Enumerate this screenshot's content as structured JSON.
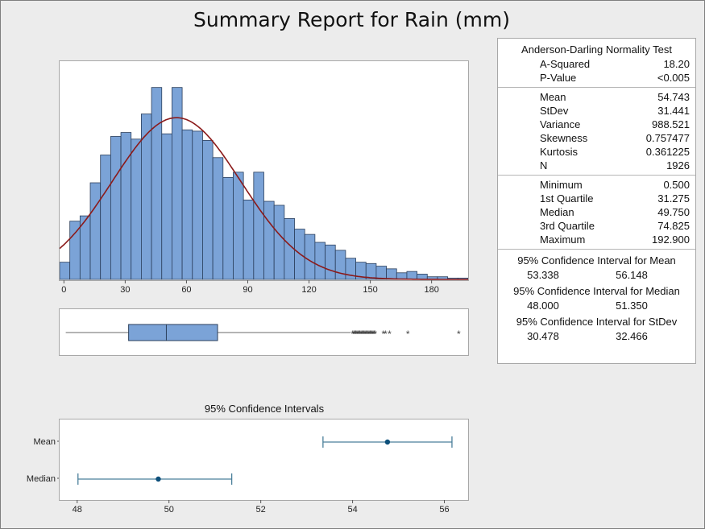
{
  "title": "Summary Report for Rain (mm)",
  "stats": {
    "normality": {
      "header": "Anderson-Darling Normality Test",
      "rows": [
        {
          "label": "A-Squared",
          "value": "18.20"
        },
        {
          "label": "P-Value",
          "value": "<0.005"
        }
      ]
    },
    "moments": [
      {
        "label": "Mean",
        "value": "54.743"
      },
      {
        "label": "StDev",
        "value": "31.441"
      },
      {
        "label": "Variance",
        "value": "988.521"
      },
      {
        "label": "Skewness",
        "value": "0.757477"
      },
      {
        "label": "Kurtosis",
        "value": "0.361225"
      },
      {
        "label": "N",
        "value": "1926"
      }
    ],
    "quantiles": [
      {
        "label": "Minimum",
        "value": "0.500"
      },
      {
        "label": "1st Quartile",
        "value": "31.275"
      },
      {
        "label": "Median",
        "value": "49.750"
      },
      {
        "label": "3rd Quartile",
        "value": "74.825"
      },
      {
        "label": "Maximum",
        "value": "192.900"
      }
    ],
    "intervals": [
      {
        "header": "95% Confidence Interval for Mean",
        "lower": "53.338",
        "upper": "56.148"
      },
      {
        "header": "95% Confidence Interval for Median",
        "lower": "48.000",
        "upper": "51.350"
      },
      {
        "header": "95% Confidence Interval for StDev",
        "lower": "30.478",
        "upper": "32.466"
      }
    ]
  },
  "ci_title": "95% Confidence Intervals",
  "colors": {
    "bar_fill": "#7ba3d7",
    "bar_stroke": "#2b3f5c",
    "curve": "#8b1a1a",
    "ci_line": "#4a7f9a",
    "ci_point": "#0d4f7a"
  },
  "chart_data": [
    {
      "type": "bar",
      "subtype": "histogram",
      "bin_width": 5,
      "x_start": -2.5,
      "xlim": [
        -2.5,
        197.5
      ],
      "x_ticks": [
        0,
        30,
        60,
        90,
        120,
        150,
        180
      ],
      "values": [
        13,
        44,
        48,
        73,
        94,
        108,
        111,
        106,
        125,
        145,
        110,
        145,
        113,
        112,
        105,
        92,
        77,
        81,
        60,
        81,
        59,
        56,
        46,
        38,
        34,
        28,
        26,
        22,
        16,
        13,
        12,
        10,
        8,
        5,
        6,
        4,
        2,
        2,
        1,
        1,
        1,
        2,
        1,
        1,
        0,
        0,
        0,
        1,
        1,
        1
      ],
      "ylim": [
        0,
        160
      ],
      "fit": {
        "distribution": "normal",
        "mean": 54.743,
        "stdev": 31.441,
        "n": 1926
      }
    },
    {
      "type": "boxplot",
      "xlim": [
        -2.5,
        197.5
      ],
      "whisker_low": 0.5,
      "q1": 31.275,
      "median": 49.75,
      "q3": 74.825,
      "whisker_high": 140,
      "outliers": [
        141,
        141.5,
        142,
        142.5,
        143,
        143.5,
        144,
        144.5,
        145,
        145.5,
        146,
        146.5,
        147,
        147.5,
        148,
        148.5,
        149,
        149.5,
        150,
        150.5,
        151,
        151.5,
        152,
        156,
        157,
        159,
        168,
        192.9
      ]
    },
    {
      "type": "interval",
      "title": "95% Confidence Intervals",
      "categories": [
        "Mean",
        "Median"
      ],
      "centers": [
        54.743,
        49.75
      ],
      "lower": [
        53.338,
        48.0
      ],
      "upper": [
        56.148,
        51.35
      ],
      "xlim": [
        47.6,
        56.5
      ],
      "x_ticks": [
        48,
        50,
        52,
        54,
        56
      ]
    }
  ]
}
